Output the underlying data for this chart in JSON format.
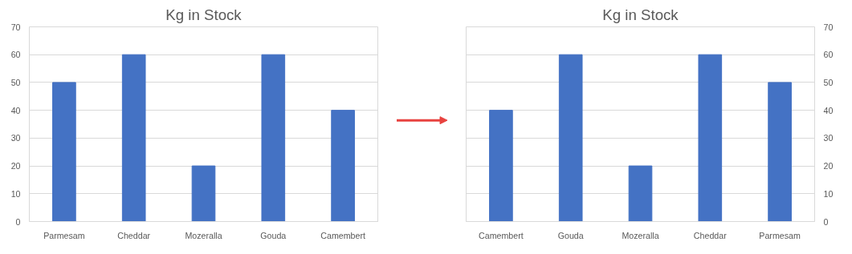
{
  "chart_data": [
    {
      "type": "bar",
      "title": "Kg in Stock",
      "categories": [
        "Parmesam",
        "Cheddar",
        "Mozeralla",
        "Gouda",
        "Camembert"
      ],
      "series": [
        {
          "color": "#4472c4",
          "values": [
            50,
            60,
            20,
            60,
            40
          ]
        }
      ],
      "ylim": [
        0,
        70
      ],
      "yticks": [
        0,
        10,
        20,
        30,
        40,
        50,
        60,
        70
      ],
      "grid": "y"
    },
    {
      "type": "bar",
      "title": "Kg in Stock",
      "categories": [
        "Camembert",
        "Gouda",
        "Mozeralla",
        "Cheddar",
        "Parmesam"
      ],
      "series": [
        {
          "color": "#4472c4",
          "values": [
            40,
            60,
            20,
            60,
            50
          ],
          "axis": "y2"
        }
      ],
      "y2lim": [
        0,
        70
      ],
      "y2ticks": [
        0,
        10,
        20,
        30,
        40,
        50,
        60,
        70
      ],
      "grid": "y"
    }
  ]
}
